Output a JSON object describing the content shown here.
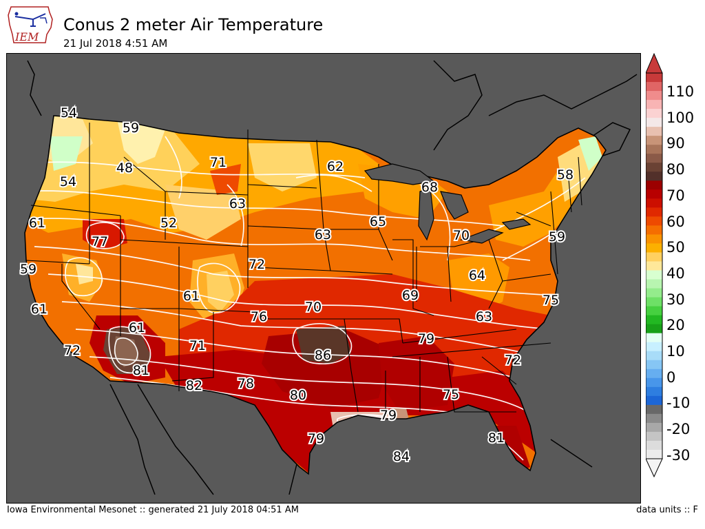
{
  "header": {
    "title": "Conus 2 meter Air Temperature",
    "subtitle": "21 Jul 2018 4:51 AM",
    "logo_text": "IEM"
  },
  "footer": {
    "left": "Iowa Environmental Mesonet :: generated 21 July 2018 04:51 AM",
    "right": "data units :: F"
  },
  "colorbar": {
    "labels": [
      "110",
      "100",
      "90",
      "80",
      "70",
      "60",
      "50",
      "40",
      "30",
      "20",
      "10",
      "0",
      "-10",
      "-20",
      "-30"
    ],
    "colors_top_to_bottom": [
      "#c83a3a",
      "#e06565",
      "#f08c8c",
      "#f8b4b4",
      "#fbd2d2",
      "#f4e8e8",
      "#e8c0b0",
      "#c89478",
      "#a8745a",
      "#8a5a48",
      "#6a4234",
      "#52302a",
      "#9c0000",
      "#b80000",
      "#cc0f00",
      "#e02800",
      "#ee4a00",
      "#f56e00",
      "#fa9200",
      "#fcb000",
      "#ffd060",
      "#ffe89a",
      "#d8ffd0",
      "#b8f5b0",
      "#94ec8c",
      "#6ee066",
      "#46d040",
      "#22b822",
      "#18a018",
      "#e4fff4",
      "#c8f0ff",
      "#a8dcf8",
      "#86c6f4",
      "#66aef0",
      "#4896ea",
      "#2e7ee0",
      "#1c66d6",
      "#686868",
      "#8a8a8a",
      "#a8a8a8",
      "#c4c4c4",
      "#dcdcdc",
      "#ececec"
    ],
    "arrow_top_color": "#c83a3a",
    "arrow_bottom_color": "#f4f4f4"
  },
  "map": {
    "background_color": "#595959",
    "units": "F",
    "stations": [
      {
        "value": "54",
        "place": "NW Washington"
      },
      {
        "value": "59",
        "place": "N Idaho"
      },
      {
        "value": "48",
        "place": "E Washington"
      },
      {
        "value": "54",
        "place": "Oregon"
      },
      {
        "value": "71",
        "place": "Montana"
      },
      {
        "value": "62",
        "place": "Minnesota"
      },
      {
        "value": "68",
        "place": "N Michigan"
      },
      {
        "value": "58",
        "place": "Maine"
      },
      {
        "value": "63",
        "place": "Wyoming"
      },
      {
        "value": "52",
        "place": "Idaho"
      },
      {
        "value": "61",
        "place": "Oregon coast"
      },
      {
        "value": "77",
        "place": "N Nevada"
      },
      {
        "value": "63",
        "place": "Nebraska"
      },
      {
        "value": "65",
        "place": "Iowa"
      },
      {
        "value": "70",
        "place": "Michigan"
      },
      {
        "value": "59",
        "place": "New York"
      },
      {
        "value": "59",
        "place": "N California coast"
      },
      {
        "value": "72",
        "place": "Kansas"
      },
      {
        "value": "64",
        "place": "Ohio"
      },
      {
        "value": "61",
        "place": "Colorado"
      },
      {
        "value": "61",
        "place": "California coast"
      },
      {
        "value": "69",
        "place": "Illinois"
      },
      {
        "value": "75",
        "place": "Virginia"
      },
      {
        "value": "70",
        "place": "Kansas S"
      },
      {
        "value": "76",
        "place": "Oklahoma panhandle"
      },
      {
        "value": "63",
        "place": "Kentucky"
      },
      {
        "value": "61",
        "place": "Arizona N"
      },
      {
        "value": "72",
        "place": "S California"
      },
      {
        "value": "71",
        "place": "New Mexico"
      },
      {
        "value": "79",
        "place": "Tennessee"
      },
      {
        "value": "86",
        "place": "Oklahoma"
      },
      {
        "value": "81",
        "place": "Arizona S"
      },
      {
        "value": "72",
        "place": "South Carolina"
      },
      {
        "value": "82",
        "place": "SW Texas"
      },
      {
        "value": "78",
        "place": "W Texas"
      },
      {
        "value": "80",
        "place": "Texas"
      },
      {
        "value": "75",
        "place": "Georgia"
      },
      {
        "value": "79",
        "place": "Louisiana"
      },
      {
        "value": "79",
        "place": "S Texas"
      },
      {
        "value": "81",
        "place": "Florida"
      },
      {
        "value": "84",
        "place": "Gulf of Mexico"
      }
    ]
  }
}
